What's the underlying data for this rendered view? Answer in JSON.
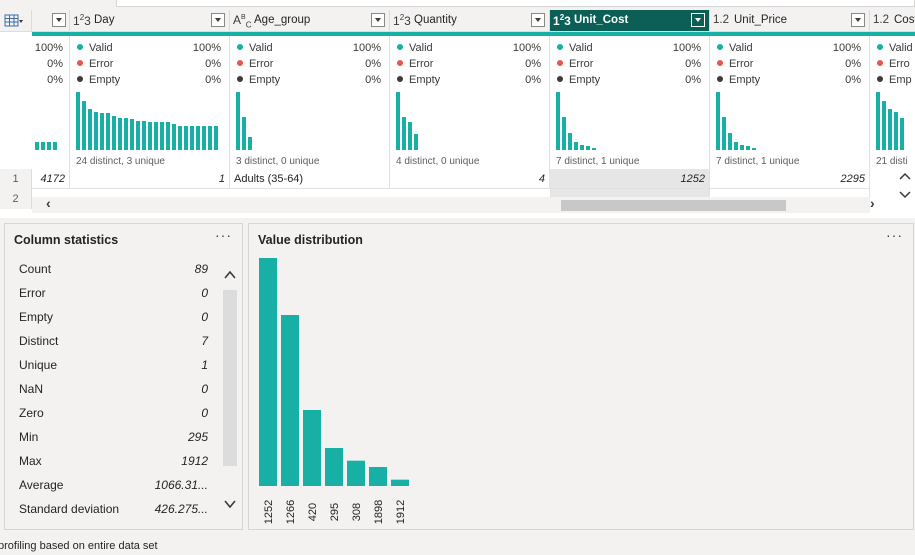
{
  "grid": {
    "columns": [
      {
        "key": "index",
        "type_icon": "1²3",
        "name": "",
        "valid_pct": "100%",
        "error_pct": "0%",
        "empty_pct": "0%",
        "distinct_text": ""
      },
      {
        "key": "day",
        "type_icon": "1²3",
        "name": "Day",
        "valid_label": "Valid",
        "error_label": "Error",
        "empty_label": "Empty",
        "valid_pct": "100%",
        "error_pct": "0%",
        "empty_pct": "0%",
        "distinct_text": "24 distinct, 3 unique"
      },
      {
        "key": "age",
        "type_icon": "ABC",
        "name": "Age_group",
        "valid_label": "Valid",
        "error_label": "Error",
        "empty_label": "Empty",
        "valid_pct": "100%",
        "error_pct": "0%",
        "empty_pct": "0%",
        "distinct_text": "3 distinct, 0 unique"
      },
      {
        "key": "qty",
        "type_icon": "1²3",
        "name": "Quantity",
        "valid_label": "Valid",
        "error_label": "Error",
        "empty_label": "Empty",
        "valid_pct": "100%",
        "error_pct": "0%",
        "empty_pct": "0%",
        "distinct_text": "4 distinct, 0 unique"
      },
      {
        "key": "ucost",
        "type_icon": "1²3",
        "name": "Unit_Cost",
        "valid_label": "Valid",
        "error_label": "Error",
        "empty_label": "Empty",
        "valid_pct": "100%",
        "error_pct": "0%",
        "empty_pct": "0%",
        "distinct_text": "7 distinct, 1 unique"
      },
      {
        "key": "uprice",
        "type_icon": "1.2",
        "name": "Unit_Price",
        "valid_label": "Valid",
        "error_label": "Error",
        "empty_label": "Empty",
        "valid_pct": "100%",
        "error_pct": "0%",
        "empty_pct": "0%",
        "distinct_text": "7 distinct, 1 unique"
      },
      {
        "key": "cost",
        "type_icon": "1.2",
        "name": "Cost",
        "valid_label": "Valid",
        "error_label": "Erro",
        "empty_label": "Emp",
        "valid_pct": "",
        "error_pct": "",
        "empty_pct": "",
        "distinct_text": "21 disti"
      }
    ],
    "rows": [
      {
        "n": "1",
        "index": "4172",
        "day": "1",
        "age": "Adults (35-64)",
        "qty": "4",
        "ucost": "1252",
        "uprice": "2295"
      },
      {
        "n": "2",
        "index": "",
        "day": "",
        "age": "",
        "qty": "",
        "ucost": "",
        "uprice": ""
      }
    ],
    "mini_hist": {
      "index": [
        0.13,
        0.13,
        0.13,
        0.13
      ],
      "day": [
        1.0,
        0.85,
        0.7,
        0.66,
        0.63,
        0.63,
        0.58,
        0.55,
        0.55,
        0.53,
        0.5,
        0.5,
        0.48,
        0.48,
        0.48,
        0.48,
        0.45,
        0.42,
        0.42,
        0.42,
        0.42,
        0.42,
        0.42,
        0.42
      ],
      "age": [
        1.0,
        0.57,
        0.22
      ],
      "qty": [
        1.0,
        0.57,
        0.48,
        0.28
      ],
      "ucost": [
        1.0,
        0.57,
        0.3,
        0.14,
        0.09,
        0.07,
        0.04
      ],
      "uprice": [
        1.0,
        0.57,
        0.3,
        0.14,
        0.09,
        0.07,
        0.04
      ],
      "cost": [
        1.0,
        0.85,
        0.7,
        0.66,
        0.55
      ]
    }
  },
  "column_statistics": {
    "title": "Column statistics",
    "more": "···",
    "items": [
      {
        "label": "Count",
        "value": "89"
      },
      {
        "label": "Error",
        "value": "0"
      },
      {
        "label": "Empty",
        "value": "0"
      },
      {
        "label": "Distinct",
        "value": "7"
      },
      {
        "label": "Unique",
        "value": "1"
      },
      {
        "label": "NaN",
        "value": "0"
      },
      {
        "label": "Zero",
        "value": "0"
      },
      {
        "label": "Min",
        "value": "295"
      },
      {
        "label": "Max",
        "value": "1912"
      },
      {
        "label": "Average",
        "value": "1066.31..."
      },
      {
        "label": "Standard deviation",
        "value": "426.275..."
      }
    ]
  },
  "value_distribution": {
    "title": "Value distribution",
    "more": "···"
  },
  "chart_data": {
    "type": "bar",
    "categories": [
      "1252",
      "1266",
      "420",
      "295",
      "308",
      "1898",
      "1912"
    ],
    "values": [
      36,
      27,
      12,
      6,
      4,
      3,
      1
    ],
    "title": "",
    "xlabel": "",
    "ylabel": ""
  },
  "colors": {
    "accent": "#18b0a4",
    "selected_header": "#0b5f56",
    "valid": "#18b0a4",
    "error": "#e05a4f",
    "empty": "#3b3a39"
  },
  "footer": {
    "text": "profiling based on entire data set"
  }
}
